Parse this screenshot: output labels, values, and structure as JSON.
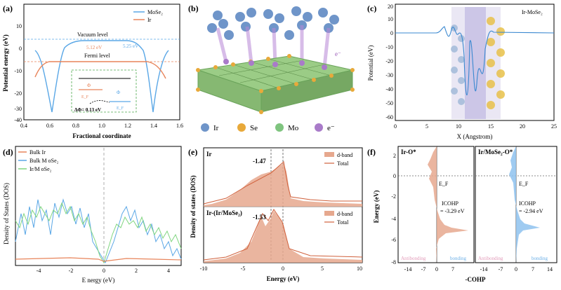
{
  "colors": {
    "ir": "#e8845a",
    "mose2": "#5aa7e6",
    "irmose2": "#7fd57f",
    "dband": "#e6a88e",
    "dband_line": "#d0603b",
    "atom_ir": "#6f95c9",
    "atom_se": "#e8a93a",
    "atom_mo": "#a97bc9",
    "atom_e": "#9a5ab8",
    "octa": "#9bcc86"
  },
  "panel_a": {
    "label": "(a)",
    "ylabel": "Potential energy (eV)",
    "xlabel": "Fractional coordinate",
    "legend": [
      "MoSe₂",
      "Ir"
    ],
    "vacuum_label": "Vacuum level",
    "fermi_label": "Fermi level",
    "ann_mose2": "5.25 eV",
    "ann_ir": "5.12 eV",
    "inset_delta": "ΔΦ= 0.13 eV",
    "inset_phi": "Φ",
    "inset_ef": "E_F",
    "xticks": [
      "0.4",
      "0.6",
      "0.8",
      "1.0",
      "1.2",
      "1.4",
      "1.6"
    ],
    "yticks": [
      "10",
      "0",
      "-10",
      "-20",
      "-30",
      "-40"
    ]
  },
  "panel_b": {
    "label": "(b)",
    "legend": [
      "Ir",
      "Se",
      "Mo",
      "e⁻"
    ],
    "electron": "e⁻"
  },
  "panel_c": {
    "label": "(c)",
    "title": "Ir-MoSe₂",
    "ylabel": "Potential (eV)",
    "xlabel": "X (Angstrom)",
    "xticks": [
      "0",
      "5",
      "10",
      "15",
      "20",
      "25"
    ],
    "yticks": [
      "20",
      "10",
      "0",
      "-10",
      "-20",
      "-30",
      "-40",
      "-50",
      "-60"
    ]
  },
  "panel_d": {
    "label": "(d)",
    "ylabel": "Density of States (DOS)",
    "xlabel": "E nergy (eV)",
    "legend": [
      "Bulk Ir",
      "Bulk M oSe₂",
      "Ir/M oSe₂"
    ],
    "xticks": [
      "-4",
      "-2",
      "0",
      "2",
      "4"
    ]
  },
  "panel_e": {
    "label": "(e)",
    "ylabel": "Density of states (DOS)",
    "xlabel": "Energy (eV)",
    "top_name": "Ir",
    "bottom_name": "Ir-(Ir/MoSe₂)",
    "top_center": "-1.47",
    "bottom_center": "-1.53",
    "legend": [
      "d-band",
      "Total"
    ],
    "xticks": [
      "-10",
      "-5",
      "0",
      "5",
      "10"
    ]
  },
  "panel_f": {
    "label": "(f)",
    "ylabel": "Energy (eV)",
    "xlabel": "-COHP",
    "left_title": "Ir-O*",
    "right_title": "Ir/MoSe₂-O*",
    "ef": "E_F",
    "icohp_left": [
      "ICOHP",
      "= -3.29 eV"
    ],
    "icohp_right": [
      "ICOHP",
      "= -2.94 eV"
    ],
    "antibonding": "Antibonding",
    "bonding": "bonding",
    "yticks": [
      "2",
      "0",
      "-2",
      "-4",
      "-6",
      "-8"
    ],
    "xticks_left": [
      "-14",
      "-7",
      "0",
      "7"
    ],
    "xticks_right": [
      "-14",
      "-7",
      "0",
      "7",
      "14"
    ]
  },
  "chart_data": [
    {
      "type": "line",
      "panel": "a",
      "series": [
        {
          "name": "MoSe₂",
          "x": [
            0.5,
            0.55,
            0.6,
            0.63,
            0.66,
            0.7,
            0.75,
            0.8,
            0.9,
            1.0,
            1.1,
            1.2,
            1.25,
            1.3,
            1.33,
            1.36,
            1.4,
            1.45,
            1.5
          ],
          "y": [
            -2,
            -5,
            -15,
            -35,
            -20,
            -8,
            -3,
            3,
            3.5,
            3.5,
            3.5,
            3,
            -3,
            -8,
            -20,
            -35,
            -15,
            -5,
            -2
          ]
        },
        {
          "name": "Ir",
          "x": [
            0.5,
            0.55,
            0.58,
            0.6,
            0.65,
            0.7,
            0.8,
            1.0,
            1.2,
            1.3,
            1.35,
            1.4,
            1.42,
            1.45,
            1.5
          ],
          "y": [
            -18,
            -12,
            -7,
            -4,
            -4,
            -4,
            -4,
            -4,
            -4,
            -4,
            -4,
            -4,
            -7,
            -12,
            -18
          ]
        }
      ],
      "xlim": [
        0.4,
        1.6
      ],
      "ylim": [
        -40,
        10
      ]
    },
    {
      "type": "line",
      "panel": "c",
      "series": [
        {
          "name": "Ir-MoSe₂",
          "x": [
            0,
            5,
            7,
            8,
            9,
            10,
            11,
            12,
            13,
            13.5,
            14,
            15,
            16,
            17,
            18,
            19,
            20,
            25
          ],
          "y": [
            0,
            0,
            0,
            3,
            -4,
            5,
            -6,
            2,
            -55,
            -10,
            -50,
            -20,
            -45,
            -10,
            -3,
            0,
            0,
            0
          ]
        }
      ],
      "xlim": [
        0,
        25
      ],
      "ylim": [
        -60,
        20
      ]
    },
    {
      "type": "line",
      "panel": "d",
      "series": [
        {
          "name": "Bulk Ir",
          "x": [
            -5,
            -4,
            -3,
            -2,
            -1,
            0,
            1,
            2,
            3,
            4,
            5
          ],
          "y": [
            0.05,
            0.05,
            0.06,
            0.06,
            0.05,
            0.05,
            0.05,
            0.06,
            0.05,
            0.05,
            0.05
          ]
        },
        {
          "name": "Bulk M oSe₂",
          "x": [
            -5,
            -4,
            -3,
            -2,
            -1,
            0,
            1,
            2,
            3,
            4,
            5
          ],
          "y": [
            0.3,
            0.1,
            0.5,
            0.7,
            0.4,
            0,
            0.2,
            0.6,
            0.4,
            0.2,
            0.1
          ]
        },
        {
          "name": "Ir/M oSe₂",
          "x": [
            -5,
            -4,
            -3,
            -2,
            -1,
            0,
            1,
            2,
            3,
            4,
            5
          ],
          "y": [
            0.4,
            0.5,
            0.6,
            0.7,
            0.5,
            0.1,
            0.4,
            0.5,
            0.5,
            0.4,
            0.3
          ]
        }
      ],
      "xlim": [
        -5,
        5
      ]
    },
    {
      "type": "area",
      "panel": "e",
      "series": [
        {
          "name": "Ir d-band",
          "x": [
            -10,
            -7,
            -5,
            -3,
            -1.47,
            0,
            1,
            5,
            10
          ],
          "y": [
            0,
            0.1,
            0.4,
            0.8,
            0.85,
            1,
            0.2,
            0.1,
            0.1
          ]
        },
        {
          "name": "Ir-(Ir/MoSe₂) d-band",
          "x": [
            -10,
            -7,
            -5,
            -3,
            -1.53,
            0,
            1,
            5,
            10
          ],
          "y": [
            0,
            0.1,
            0.5,
            0.8,
            1,
            0.7,
            0.1,
            0.1,
            0.05
          ]
        }
      ],
      "xlim": [
        -10,
        10
      ],
      "d_band_center": [
        -1.47,
        -1.53
      ]
    },
    {
      "type": "area",
      "panel": "f",
      "series": [
        {
          "name": "Ir-O*",
          "y": [
            2,
            1,
            0,
            -1,
            -2,
            -3,
            -4,
            -4.7,
            -5,
            -6,
            -8
          ],
          "x": [
            -1,
            -2,
            -3,
            -1,
            -1,
            -1,
            3,
            12,
            2,
            0,
            0
          ]
        },
        {
          "name": "Ir/MoSe₂-O*",
          "y": [
            2,
            1,
            0,
            -1,
            -2,
            -3,
            -4,
            -4.6,
            -5,
            -6,
            -8
          ],
          "x": [
            -1,
            -2,
            -2,
            -1,
            -1,
            -1,
            3,
            8,
            1,
            0,
            0
          ]
        }
      ],
      "ylim": [
        -8,
        2
      ],
      "icohp": [
        -3.29,
        -2.94
      ]
    }
  ]
}
